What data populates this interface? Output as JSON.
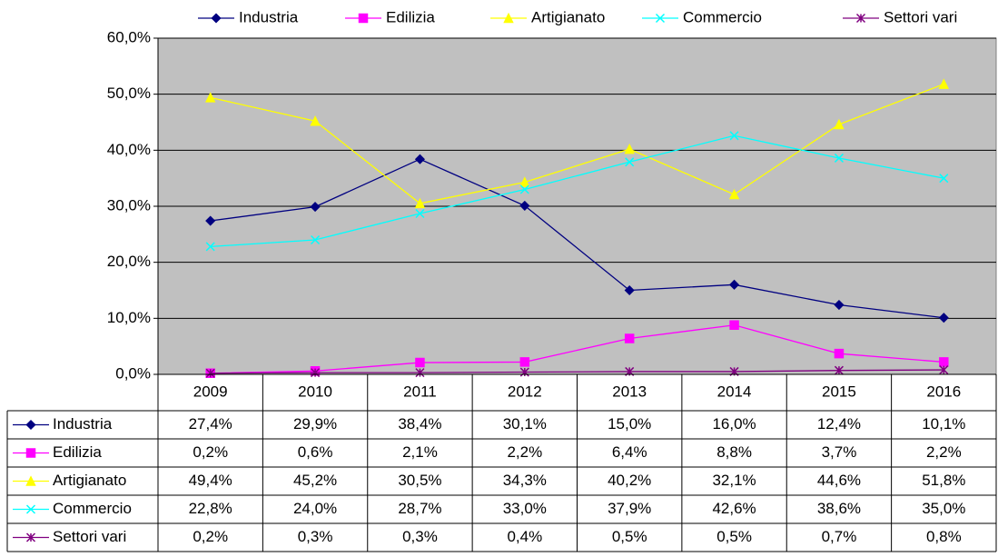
{
  "chart_data": {
    "type": "line",
    "categories": [
      "2009",
      "2010",
      "2011",
      "2012",
      "2013",
      "2014",
      "2015",
      "2016"
    ],
    "ylim": [
      0,
      60
    ],
    "yticks": [
      {
        "value": 0,
        "label": "0,0%"
      },
      {
        "value": 10,
        "label": "10,0%"
      },
      {
        "value": 20,
        "label": "20,0%"
      },
      {
        "value": 30,
        "label": "30,0%"
      },
      {
        "value": 40,
        "label": "40,0%"
      },
      {
        "value": 50,
        "label": "50,0%"
      },
      {
        "value": 60,
        "label": "60,0%"
      }
    ],
    "grid": true,
    "plot_background": "#c0c0c0",
    "legend": "top",
    "data_table": true,
    "series": [
      {
        "name": "Industria",
        "color": "#000080",
        "marker": "diamond",
        "values": [
          27.4,
          29.9,
          38.4,
          30.1,
          15.0,
          16.0,
          12.4,
          10.1
        ],
        "value_labels": [
          "27,4%",
          "29,9%",
          "38,4%",
          "30,1%",
          "15,0%",
          "16,0%",
          "12,4%",
          "10,1%"
        ]
      },
      {
        "name": "Edilizia",
        "color": "#ff00ff",
        "marker": "square",
        "values": [
          0.2,
          0.6,
          2.1,
          2.2,
          6.4,
          8.8,
          3.7,
          2.2
        ],
        "value_labels": [
          "0,2%",
          "0,6%",
          "2,1%",
          "2,2%",
          "6,4%",
          "8,8%",
          "3,7%",
          "2,2%"
        ]
      },
      {
        "name": "Artigianato",
        "color": "#ffff00",
        "marker": "triangle",
        "values": [
          49.4,
          45.2,
          30.5,
          34.3,
          40.2,
          32.1,
          44.6,
          51.8
        ],
        "value_labels": [
          "49,4%",
          "45,2%",
          "30,5%",
          "34,3%",
          "40,2%",
          "32,1%",
          "44,6%",
          "51,8%"
        ]
      },
      {
        "name": "Commercio",
        "color": "#00ffff",
        "marker": "x",
        "values": [
          22.8,
          24.0,
          28.7,
          33.0,
          37.9,
          42.6,
          38.6,
          35.0
        ],
        "value_labels": [
          "22,8%",
          "24,0%",
          "28,7%",
          "33,0%",
          "37,9%",
          "42,6%",
          "38,6%",
          "35,0%"
        ]
      },
      {
        "name": "Settori vari",
        "color": "#800080",
        "marker": "star",
        "values": [
          0.2,
          0.3,
          0.3,
          0.4,
          0.5,
          0.5,
          0.7,
          0.8
        ],
        "value_labels": [
          "0,2%",
          "0,3%",
          "0,3%",
          "0,4%",
          "0,5%",
          "0,5%",
          "0,7%",
          "0,8%"
        ]
      }
    ]
  }
}
